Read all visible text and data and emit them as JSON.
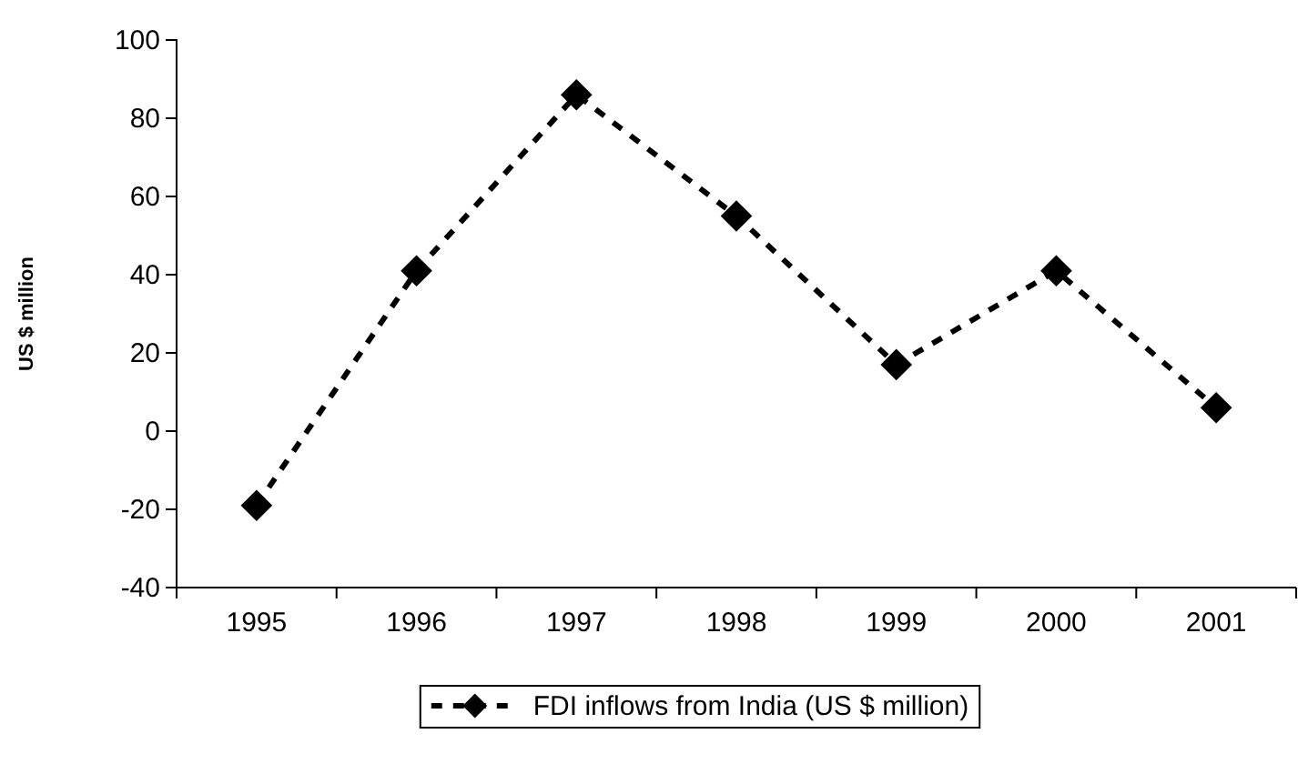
{
  "chart_data": {
    "type": "line",
    "ylabel": "US $ million",
    "categories": [
      "1995",
      "1996",
      "1997",
      "1998",
      "1999",
      "2000",
      "2001"
    ],
    "series": [
      {
        "name": "FDI inflows from India (US $ million)",
        "color": "#000000",
        "values": [
          -19,
          41,
          86,
          55,
          17,
          41,
          6
        ]
      }
    ],
    "ylim": [
      -40,
      100
    ],
    "yticks": [
      -40,
      -20,
      0,
      20,
      40,
      60,
      80,
      100
    ],
    "grid": false,
    "legend": "bottom",
    "marker": "diamond",
    "line_style": "dashed"
  }
}
